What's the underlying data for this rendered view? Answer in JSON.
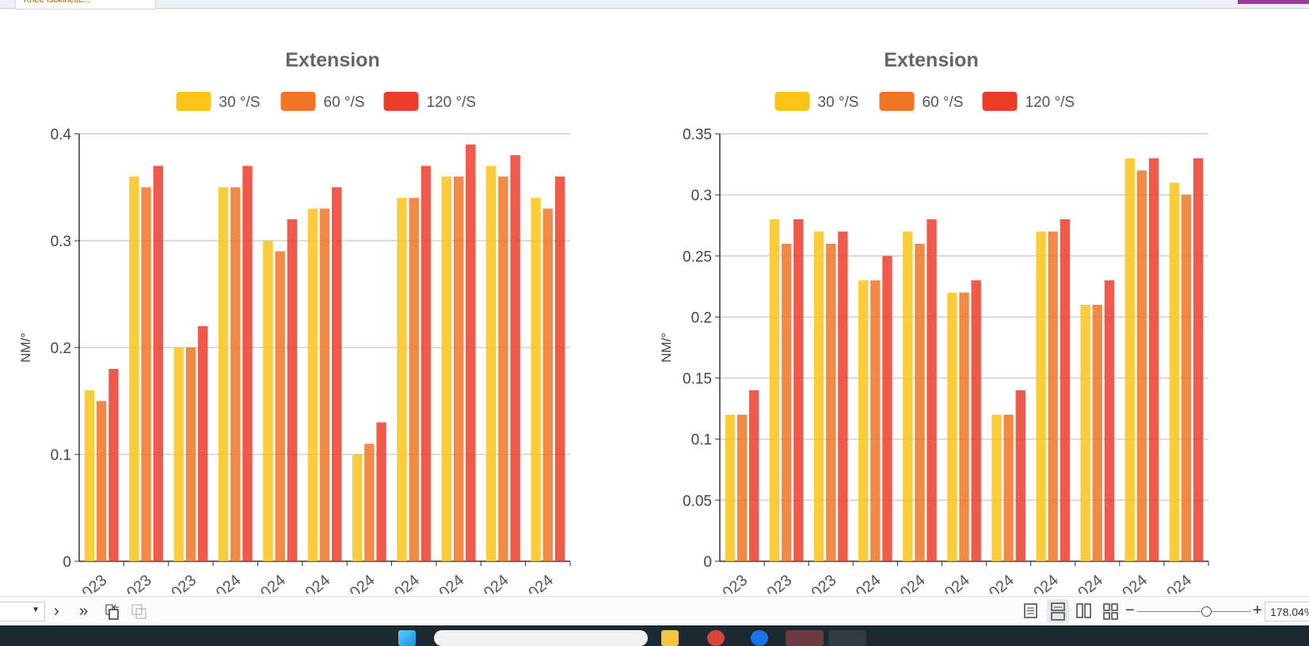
{
  "browser": {
    "tab_title": "Knee Isokinetic..."
  },
  "chart_data": [
    {
      "type": "bar",
      "title": "Extension",
      "ylabel": "NM/°",
      "ylim": [
        0,
        0.4
      ],
      "yticks": [
        "0",
        "0.1",
        "0.2",
        "0.3",
        "0.4"
      ],
      "ytick_values": [
        0,
        0.1,
        0.2,
        0.3,
        0.4
      ],
      "categories": [
        "023",
        "023",
        "023",
        "024",
        "024",
        "024",
        "024",
        "024",
        "024",
        "024",
        "024"
      ],
      "legend": "top-center",
      "grid": true,
      "series": [
        {
          "name": "30 °/S",
          "color": "#fcc419",
          "values": [
            0.16,
            0.36,
            0.2,
            0.35,
            0.3,
            0.33,
            0.1,
            0.34,
            0.36,
            0.37,
            0.34
          ]
        },
        {
          "name": "60 °/S",
          "color": "#f07525",
          "values": [
            0.15,
            0.35,
            0.2,
            0.35,
            0.29,
            0.33,
            0.11,
            0.34,
            0.36,
            0.36,
            0.33
          ]
        },
        {
          "name": "120 °/S",
          "color": "#ee3c2a",
          "values": [
            0.18,
            0.37,
            0.22,
            0.37,
            0.32,
            0.35,
            0.13,
            0.37,
            0.39,
            0.38,
            0.36
          ]
        }
      ]
    },
    {
      "type": "bar",
      "title": "Extension",
      "ylabel": "NM/°",
      "ylim": [
        0,
        0.35
      ],
      "yticks": [
        "0",
        "0.05",
        "0.1",
        "0.15",
        "0.2",
        "0.25",
        "0.3",
        "0.35"
      ],
      "ytick_values": [
        0,
        0.05,
        0.1,
        0.15,
        0.2,
        0.25,
        0.3,
        0.35
      ],
      "categories": [
        "023",
        "023",
        "023",
        "024",
        "024",
        "024",
        "024",
        "024",
        "024",
        "024",
        "024"
      ],
      "legend": "top-center",
      "grid": true,
      "series": [
        {
          "name": "30 °/S",
          "color": "#fcc419",
          "values": [
            0.12,
            0.28,
            0.27,
            0.23,
            0.27,
            0.22,
            0.12,
            0.27,
            0.21,
            0.33,
            0.31
          ]
        },
        {
          "name": "60 °/S",
          "color": "#f07525",
          "values": [
            0.12,
            0.26,
            0.26,
            0.23,
            0.26,
            0.22,
            0.12,
            0.27,
            0.21,
            0.32,
            0.3
          ]
        },
        {
          "name": "120 °/S",
          "color": "#ee3c2a",
          "values": [
            0.14,
            0.28,
            0.27,
            0.25,
            0.28,
            0.23,
            0.14,
            0.28,
            0.23,
            0.33,
            0.33
          ]
        }
      ]
    }
  ],
  "toolbar": {
    "next": "›",
    "last": "»",
    "zoom_minus": "−",
    "zoom_plus": "+",
    "zoom_value": "178.04%"
  }
}
